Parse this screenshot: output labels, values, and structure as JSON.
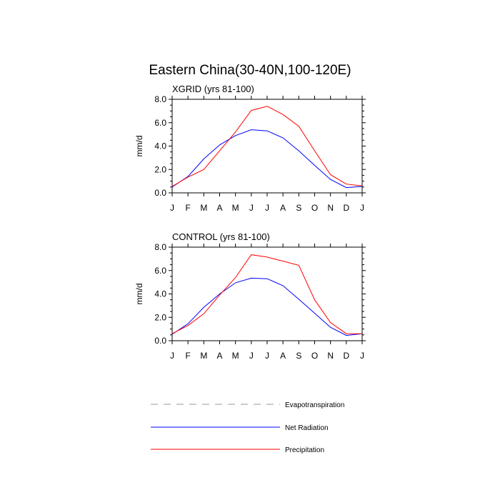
{
  "figure_title": "Eastern China(30-40N,100-120E)",
  "chart_data": [
    {
      "type": "line",
      "title": "XGRID (yrs 81-100)",
      "xlabel": "",
      "ylabel": "mm/d",
      "categories": [
        "J",
        "F",
        "M",
        "A",
        "M",
        "J",
        "J",
        "A",
        "S",
        "O",
        "N",
        "D",
        "J"
      ],
      "ylim": [
        0,
        8
      ],
      "yticks": [
        "0.0",
        "2.0",
        "4.0",
        "6.0",
        "8.0"
      ],
      "series": [
        {
          "name": "Net Radiation",
          "color": "#0000ff",
          "values": [
            0.5,
            1.4,
            2.9,
            4.1,
            4.9,
            5.4,
            5.3,
            4.7,
            3.6,
            2.35,
            1.15,
            0.45,
            0.55
          ]
        },
        {
          "name": "Precipitation",
          "color": "#ff0000",
          "values": [
            0.55,
            1.35,
            2.0,
            3.6,
            5.2,
            7.05,
            7.4,
            6.7,
            5.7,
            3.6,
            1.55,
            0.75,
            0.6
          ]
        }
      ]
    },
    {
      "type": "line",
      "title": "CONTROL (yrs 81-100)",
      "xlabel": "",
      "ylabel": "mm/d",
      "categories": [
        "J",
        "F",
        "M",
        "A",
        "M",
        "J",
        "J",
        "A",
        "S",
        "O",
        "N",
        "D",
        "J"
      ],
      "ylim": [
        0,
        8
      ],
      "yticks": [
        "0.0",
        "2.0",
        "4.0",
        "6.0",
        "8.0"
      ],
      "series": [
        {
          "name": "Net Radiation",
          "color": "#0000ff",
          "values": [
            0.55,
            1.45,
            2.85,
            4.0,
            4.95,
            5.35,
            5.3,
            4.7,
            3.55,
            2.35,
            1.15,
            0.45,
            0.6
          ]
        },
        {
          "name": "Precipitation",
          "color": "#ff0000",
          "values": [
            0.6,
            1.3,
            2.3,
            3.9,
            5.4,
            7.35,
            7.15,
            6.8,
            6.45,
            3.5,
            1.55,
            0.6,
            0.6
          ]
        }
      ]
    }
  ],
  "legend": [
    {
      "label": "Evapotranspiration",
      "color": "#999999",
      "dash": true
    },
    {
      "label": "Net Radiation",
      "color": "#0000ff",
      "dash": false
    },
    {
      "label": "Precipitation",
      "color": "#ff0000",
      "dash": false
    }
  ]
}
